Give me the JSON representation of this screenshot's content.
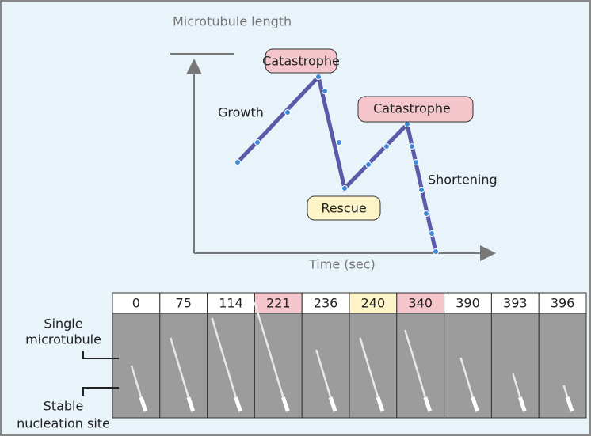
{
  "y_axis_label": "Microtubule length",
  "x_axis_label": "Time (sec)",
  "annotations": {
    "catastrophe_1": "Catastrophe",
    "catastrophe_2": "Catastrophe",
    "rescue": "Rescue",
    "growth": "Growth",
    "shortening": "Shortening"
  },
  "frames": [
    {
      "time": 0
    },
    {
      "time": 75
    },
    {
      "time": 114
    },
    {
      "time": 221,
      "color": "#f4c6cc"
    },
    {
      "time": 236
    },
    {
      "time": 240,
      "color": "#fdf5c8"
    },
    {
      "time": 340,
      "color": "#f4c6cc"
    },
    {
      "time": 390
    },
    {
      "time": 393
    },
    {
      "time": 396
    }
  ],
  "side_labels": {
    "microtubule": [
      "Single",
      "microtubule"
    ],
    "nucleation": [
      "Stable",
      "nucleation site"
    ]
  }
}
